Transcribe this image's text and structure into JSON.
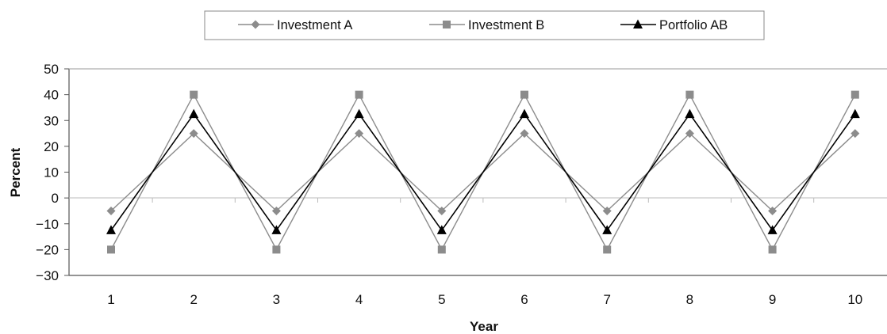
{
  "chart_data": {
    "type": "line",
    "xlabel": "Year",
    "ylabel": "Percent",
    "categories": [
      "1",
      "2",
      "3",
      "4",
      "5",
      "6",
      "7",
      "8",
      "9",
      "10"
    ],
    "yticks": [
      "50",
      "40",
      "30",
      "20",
      "10",
      "0",
      "−10",
      "−20",
      "−30"
    ],
    "ylim": [
      -30,
      50
    ],
    "grid": false,
    "legend_position": "top-center",
    "series": [
      {
        "name": "Investment A",
        "marker": "diamond",
        "color": "#8c8c8c",
        "values": [
          -5,
          25,
          -5,
          25,
          -5,
          25,
          -5,
          25,
          -5,
          25
        ]
      },
      {
        "name": "Investment B",
        "marker": "square",
        "color": "#8c8c8c",
        "values": [
          -20,
          40,
          -20,
          40,
          -20,
          40,
          -20,
          40,
          -20,
          40
        ]
      },
      {
        "name": "Portfolio AB",
        "marker": "triangle",
        "color": "#000000",
        "values": [
          -12.5,
          32.5,
          -12.5,
          32.5,
          -12.5,
          32.5,
          -12.5,
          32.5,
          -12.5,
          32.5
        ]
      }
    ]
  }
}
